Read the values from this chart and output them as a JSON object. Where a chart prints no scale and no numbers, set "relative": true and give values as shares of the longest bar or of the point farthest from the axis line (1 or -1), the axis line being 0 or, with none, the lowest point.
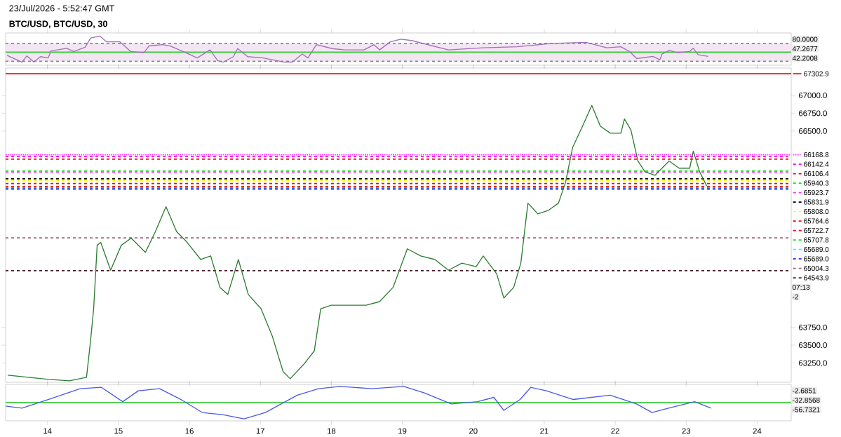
{
  "chart_data": [
    {
      "type": "line",
      "title": "23/Jul/2026 - 5:52:47 GMT",
      "subtitle": "BTC/USD, BTC/USD, 30",
      "relative": true,
      "xlim": [
        13.41,
        24.48
      ],
      "xticks": [
        14,
        15,
        16,
        17,
        18,
        19,
        20,
        21,
        22,
        23,
        24
      ],
      "tick_labels": false,
      "bands": [
        {
          "axis": "y",
          "from": 0.03,
          "to": 0.72,
          "color": "#f3e6f3"
        }
      ],
      "ref_lines": [
        {
          "axis": "y",
          "value": 0.72,
          "color": "#888888",
          "line_style": "dashed"
        },
        {
          "axis": "y",
          "value": 0.03,
          "color": "#888888",
          "line_style": "dashed"
        },
        {
          "axis": "y",
          "value": 0.38,
          "color": "#33cc33",
          "line_style": "solid"
        }
      ],
      "annotations": [
        "80.0000",
        "47.2677",
        "42.2008"
      ],
      "series": [
        {
          "color": "#a070b8",
          "x": [
            13.43,
            13.64,
            13.71,
            13.81,
            13.9,
            14.01,
            14.05,
            14.27,
            14.37,
            14.53,
            14.61,
            14.74,
            14.83,
            15.02,
            15.17,
            15.36,
            15.43,
            15.62,
            15.73,
            15.95,
            16.11,
            16.29,
            16.4,
            16.48,
            16.62,
            16.68,
            16.82,
            17.04,
            17.34,
            17.45,
            17.59,
            17.67,
            17.79,
            18.01,
            18.19,
            18.46,
            18.6,
            18.68,
            18.83,
            18.98,
            19.13,
            19.65,
            20.14,
            20.62,
            21.11,
            21.59,
            21.88,
            22.08,
            22.2,
            22.3,
            22.4,
            22.53,
            22.63,
            22.66,
            22.76,
            22.88,
            23.05,
            23.1,
            23.17,
            23.31
          ],
          "values": [
            0.26,
            0,
            0.24,
            0,
            0.21,
            0.16,
            0.43,
            0.53,
            0.41,
            0.57,
            0.93,
            1,
            0.78,
            0.78,
            0.41,
            0.36,
            0.62,
            0.67,
            0.62,
            0.36,
            0.16,
            0.47,
            0.05,
            0,
            0.21,
            0.52,
            0.21,
            0.16,
            0,
            0,
            0.31,
            0.16,
            0.67,
            0.52,
            0.47,
            0.47,
            0.67,
            0.47,
            0.78,
            0.88,
            0.83,
            0.47,
            0.55,
            0.59,
            0.72,
            0.76,
            0.55,
            0.59,
            0.41,
            0.14,
            0.17,
            0.22,
            0.09,
            0.31,
            0.45,
            0.36,
            0.41,
            0.53,
            0.28,
            0.22
          ]
        }
      ]
    },
    {
      "type": "line",
      "xlim": [
        13.41,
        24.48
      ],
      "xticks": [
        14,
        15,
        16,
        17,
        18,
        19,
        20,
        21,
        22,
        23,
        24
      ],
      "ylim": [
        62980,
        67383
      ],
      "tick_labels": "y",
      "yticks": [
        {
          "value": 63250,
          "label": "63250.0"
        },
        {
          "value": 63500,
          "label": "63500.0"
        },
        {
          "value": 63750,
          "label": "63750.0"
        },
        {
          "value": 66500,
          "label": "66500.0"
        },
        {
          "value": 66750,
          "label": "66750.0"
        },
        {
          "value": 67000,
          "label": "67000.0"
        }
      ],
      "ref_lines": [
        {
          "axis": "y",
          "value": 67302.9,
          "label": "67302.9",
          "color": "#ff0000",
          "line_style": "solid"
        },
        {
          "axis": "y",
          "value": 66168.8,
          "label": "66168.8",
          "color": "#ff33ff",
          "line_style": "dotted"
        },
        {
          "axis": "y",
          "value": 66142.4,
          "label": "66142.4",
          "color": "#ff00ff",
          "line_style": "dashed"
        },
        {
          "axis": "y",
          "value": 66106.4,
          "label": "66106.4",
          "color": "#ff0000",
          "line_style": "dashed"
        },
        {
          "axis": "y",
          "value": 65940.3,
          "label": "65940.3",
          "color": "#00ee00",
          "line_style": "dashed"
        },
        {
          "axis": "y",
          "value": 65923.7,
          "label": "65923.7",
          "color": "#ff33ff",
          "line_style": "dashed"
        },
        {
          "axis": "y",
          "value": 65831.9,
          "label": "65831.9",
          "color": "#000000",
          "line_style": "dashed"
        },
        {
          "axis": "y",
          "value": 65808.0,
          "label": "65808.0",
          "color": "#ffff00",
          "line_style": "dashed"
        },
        {
          "axis": "y",
          "value": 65764.6,
          "label": "65764.6",
          "color": "#ff0000",
          "line_style": "dashed"
        },
        {
          "axis": "y",
          "value": 65722.7,
          "label": "65722.7",
          "color": "#ff0000",
          "line_style": "dashed"
        },
        {
          "axis": "y",
          "value": 65707.8,
          "label": "65707.8",
          "color": "#00ee00",
          "line_style": "dashed"
        },
        {
          "axis": "y",
          "value": 65689.0,
          "label": "65689.0",
          "color": "#00ffff",
          "line_style": "dashed"
        },
        {
          "axis": "y",
          "value": 65689.0,
          "label": "65689.0",
          "color": "#0000ee",
          "line_style": "dashed"
        },
        {
          "axis": "y",
          "value": 65004.3,
          "label": "65004.3",
          "color": "#a06080",
          "line_style": "dashed"
        },
        {
          "axis": "y",
          "value": 64543.9,
          "label": "64543.9",
          "color": "#4a1a2a",
          "line_style": "dashed"
        }
      ],
      "legend": "right",
      "annotations": [
        "07:13",
        "-2"
      ],
      "series": [
        {
          "color": "#2e7d32",
          "x": [
            13.44,
            13.73,
            14.02,
            14.31,
            14.55,
            14.6,
            14.65,
            14.7,
            14.75,
            14.89,
            15.04,
            15.18,
            15.38,
            15.52,
            15.67,
            15.82,
            15.96,
            16.16,
            16.3,
            16.43,
            16.54,
            16.69,
            16.83,
            17.01,
            17.17,
            17.32,
            17.42,
            17.61,
            17.76,
            17.85,
            18.0,
            18.19,
            18.49,
            18.68,
            18.87,
            19.07,
            19.26,
            19.46,
            19.65,
            19.84,
            20.04,
            20.14,
            20.33,
            20.43,
            20.57,
            20.67,
            20.77,
            20.91,
            21.06,
            21.2,
            21.3,
            21.4,
            21.54,
            21.67,
            21.79,
            21.93,
            22.08,
            22.13,
            22.22,
            22.32,
            22.42,
            22.56,
            22.66,
            22.76,
            22.9,
            23.05,
            23.1,
            23.19,
            23.29
          ],
          "values": [
            63080,
            63050,
            63020,
            63000,
            63050,
            63500,
            64000,
            64900,
            64940,
            64550,
            64900,
            65000,
            64800,
            65090,
            65440,
            65090,
            64950,
            64700,
            64750,
            64310,
            64210,
            64700,
            64210,
            64010,
            63620,
            63130,
            63030,
            63230,
            63420,
            64010,
            64060,
            64060,
            64060,
            64110,
            64310,
            64850,
            64750,
            64700,
            64550,
            64650,
            64600,
            64750,
            64500,
            64160,
            64310,
            64650,
            65490,
            65340,
            65390,
            65490,
            65780,
            66270,
            66570,
            66860,
            66570,
            66470,
            66470,
            66670,
            66520,
            66080,
            65930,
            65880,
            65980,
            66080,
            65980,
            65980,
            66220,
            65930,
            65730
          ]
        }
      ]
    },
    {
      "type": "line",
      "relative": true,
      "xlim": [
        13.41,
        24.48
      ],
      "xticks": [
        14,
        15,
        16,
        17,
        18,
        19,
        20,
        21,
        22,
        23,
        24
      ],
      "tick_labels": "x",
      "ref_lines": [
        {
          "axis": "y",
          "value": 0,
          "color": "#33cc33",
          "line_style": "solid"
        }
      ],
      "annotations": [
        "-2.6851",
        "-32.8568",
        "-56.7321"
      ],
      "series": [
        {
          "color": "#4a5ae8",
          "x": [
            13.41,
            13.64,
            14.01,
            14.46,
            14.76,
            15.06,
            15.28,
            15.58,
            15.88,
            16.18,
            16.48,
            16.77,
            17.07,
            17.52,
            17.82,
            18.12,
            18.57,
            19.02,
            19.31,
            19.69,
            20.06,
            20.29,
            20.43,
            20.66,
            20.81,
            21.03,
            21.41,
            21.93,
            22.3,
            22.52,
            22.75,
            23.12,
            23.35
          ],
          "values": [
            -0.22,
            -0.35,
            0.18,
            0.84,
            0.92,
            0.05,
            0.71,
            0.84,
            0.18,
            -0.61,
            -0.75,
            -1,
            -0.61,
            0.44,
            0.84,
            0.98,
            0.84,
            0.98,
            0.58,
            -0.09,
            0.05,
            0.31,
            -0.48,
            0.18,
            0.92,
            0.71,
            0.18,
            0.44,
            -0.09,
            -0.61,
            -0.35,
            0.05,
            -0.35
          ]
        }
      ]
    }
  ]
}
